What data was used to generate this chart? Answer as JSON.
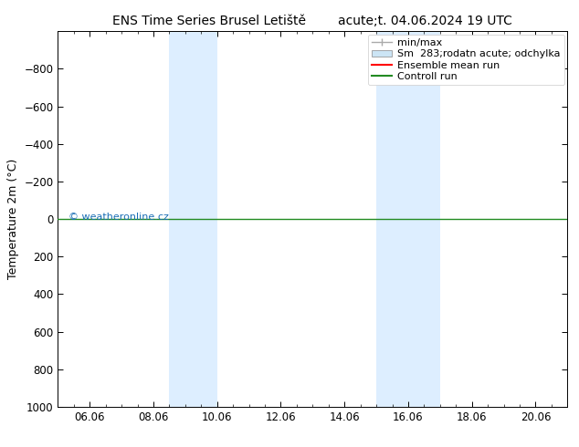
{
  "title_left": "ENS Time Series Brusel Letiště",
  "title_right": "acute;t. 04.06.2024 19 UTC",
  "ylabel": "Temperature 2m (°C)",
  "xlim": [
    5.0,
    21.0
  ],
  "ylim": [
    1000,
    -1000
  ],
  "yticks": [
    -800,
    -600,
    -400,
    -200,
    0,
    200,
    400,
    600,
    800,
    1000
  ],
  "xtick_labels": [
    "06.06",
    "08.06",
    "10.06",
    "12.06",
    "14.06",
    "16.06",
    "18.06",
    "20.06"
  ],
  "xtick_positions": [
    6.0,
    8.0,
    10.0,
    12.0,
    14.0,
    16.0,
    18.0,
    20.0
  ],
  "shaded_bands": [
    {
      "xmin": 8.5,
      "xmax": 10.0,
      "color": "#ddeeff"
    },
    {
      "xmin": 15.0,
      "xmax": 17.0,
      "color": "#ddeeff"
    }
  ],
  "hline_y": 0,
  "hline_color_green": "#228B22",
  "hline_color_red": "#ff0000",
  "watermark": "© weatheronline.cz",
  "watermark_color": "#1a6eb5",
  "legend_label_minmax": "min/max",
  "legend_label_sm": "Sm  283;rodatn acute; odchylka",
  "legend_label_ens": "Ensemble mean run",
  "legend_label_ctrl": "Controll run",
  "legend_color_minmax": "#aaaaaa",
  "legend_color_sm": "#cce5f5",
  "legend_color_ens": "#ff0000",
  "legend_color_ctrl": "#228B22",
  "background_color": "#ffffff",
  "plot_bg_color": "#ffffff",
  "border_color": "#000000",
  "title_fontsize": 10,
  "axis_label_fontsize": 9,
  "tick_fontsize": 8.5,
  "legend_fontsize": 8
}
